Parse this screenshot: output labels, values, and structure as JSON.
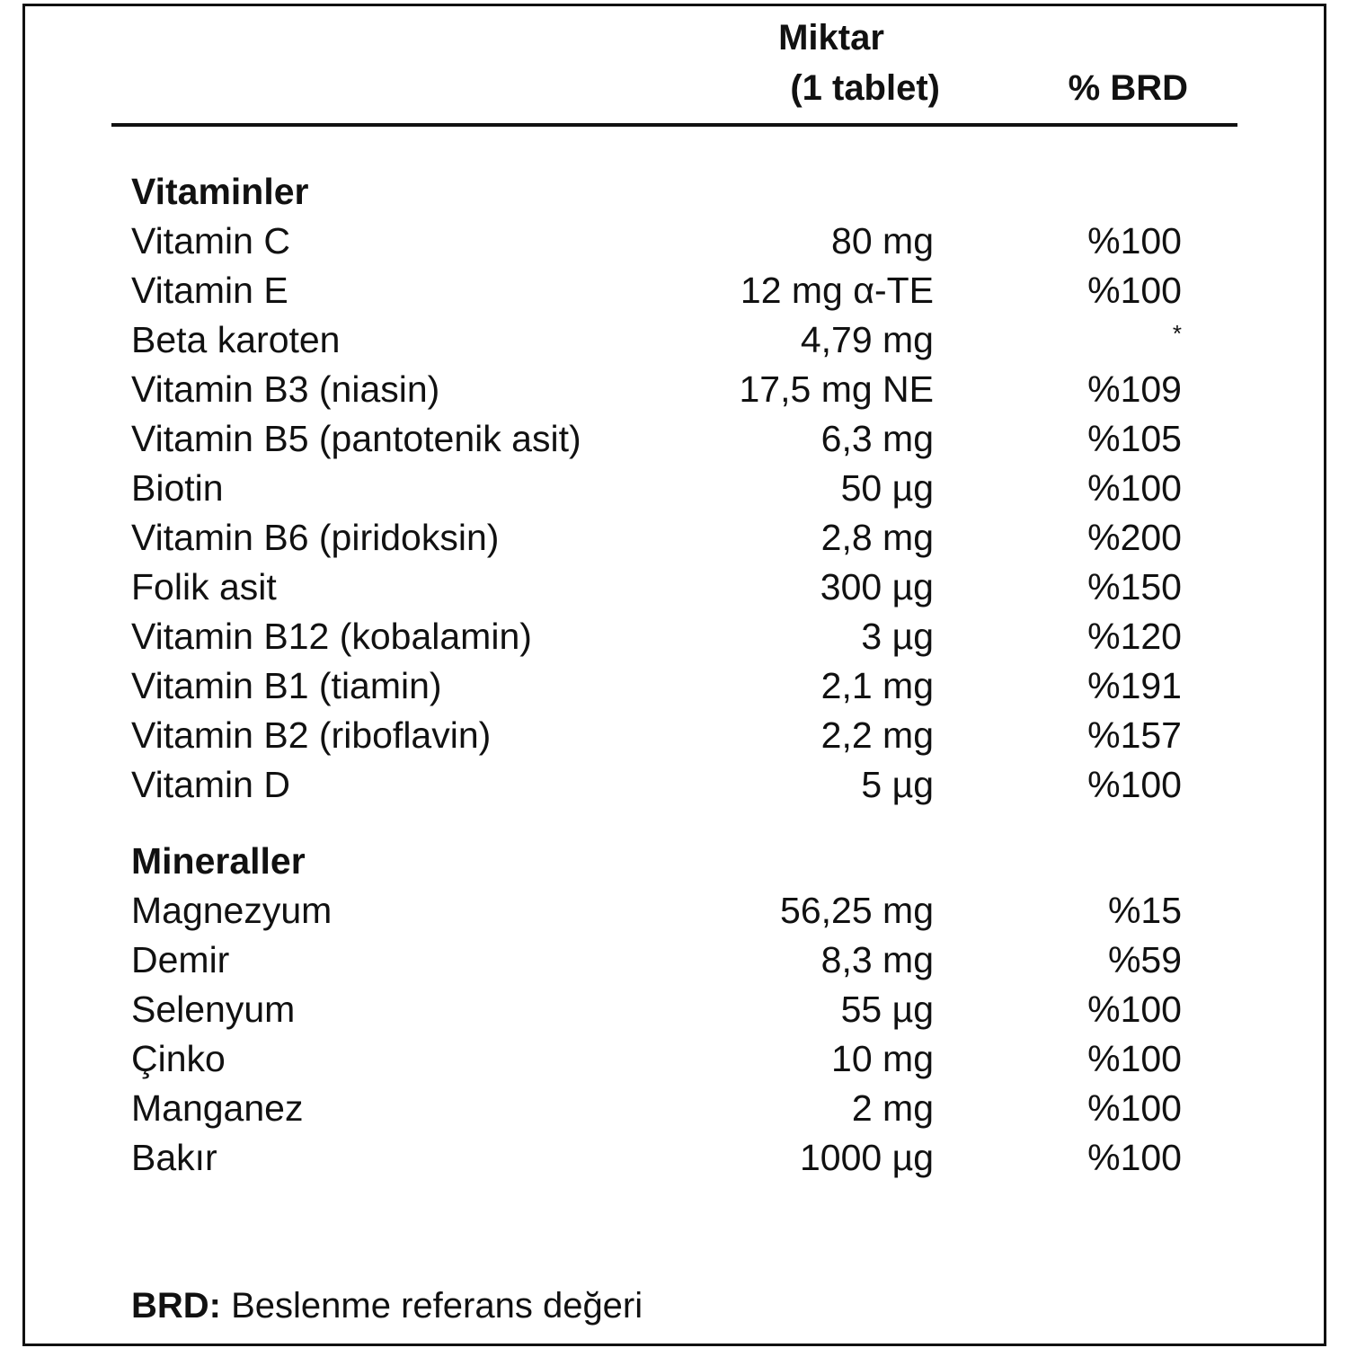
{
  "header": {
    "amount_line1": "Miktar",
    "amount_line2": "(1 tablet)",
    "brd": "% BRD"
  },
  "sections": [
    {
      "title": "Vitaminler",
      "rows": [
        {
          "name": "Vitamin C",
          "amount": "80 mg",
          "brd": "%100"
        },
        {
          "name": "Vitamin E",
          "amount": "12 mg α-TE",
          "brd": "%100"
        },
        {
          "name": "Beta karoten",
          "amount": "4,79 mg",
          "brd": "*"
        },
        {
          "name": "Vitamin B3 (niasin)",
          "amount": "17,5 mg NE",
          "brd": "%109"
        },
        {
          "name": "Vitamin B5 (pantotenik asit)",
          "amount": "6,3 mg",
          "brd": "%105"
        },
        {
          "name": "Biotin",
          "amount": "50 µg",
          "brd": "%100"
        },
        {
          "name": "Vitamin B6 (piridoksin)",
          "amount": "2,8 mg",
          "brd": "%200"
        },
        {
          "name": "Folik asit",
          "amount": "300 µg",
          "brd": "%150"
        },
        {
          "name": "Vitamin B12 (kobalamin)",
          "amount": "3 µg",
          "brd": "%120"
        },
        {
          "name": "Vitamin B1 (tiamin)",
          "amount": "2,1 mg",
          "brd": "%191"
        },
        {
          "name": "Vitamin B2 (riboflavin)",
          "amount": "2,2 mg",
          "brd": "%157"
        },
        {
          "name": "Vitamin D",
          "amount": "5 µg",
          "brd": "%100"
        }
      ]
    },
    {
      "title": "Mineraller",
      "rows": [
        {
          "name": "Magnezyum",
          "amount": "56,25 mg",
          "brd": "%15"
        },
        {
          "name": "Demir",
          "amount": "8,3 mg",
          "brd": "%59"
        },
        {
          "name": "Selenyum",
          "amount": "55 µg",
          "brd": "%100"
        },
        {
          "name": "Çinko",
          "amount": "10 mg",
          "brd": "%100"
        },
        {
          "name": "Manganez",
          "amount": "2 mg",
          "brd": "%100"
        },
        {
          "name": "Bakır",
          "amount": "1000 µg",
          "brd": "%100"
        }
      ]
    }
  ],
  "footer": {
    "term": "BRD:",
    "definition": "Beslenme referans değeri"
  }
}
